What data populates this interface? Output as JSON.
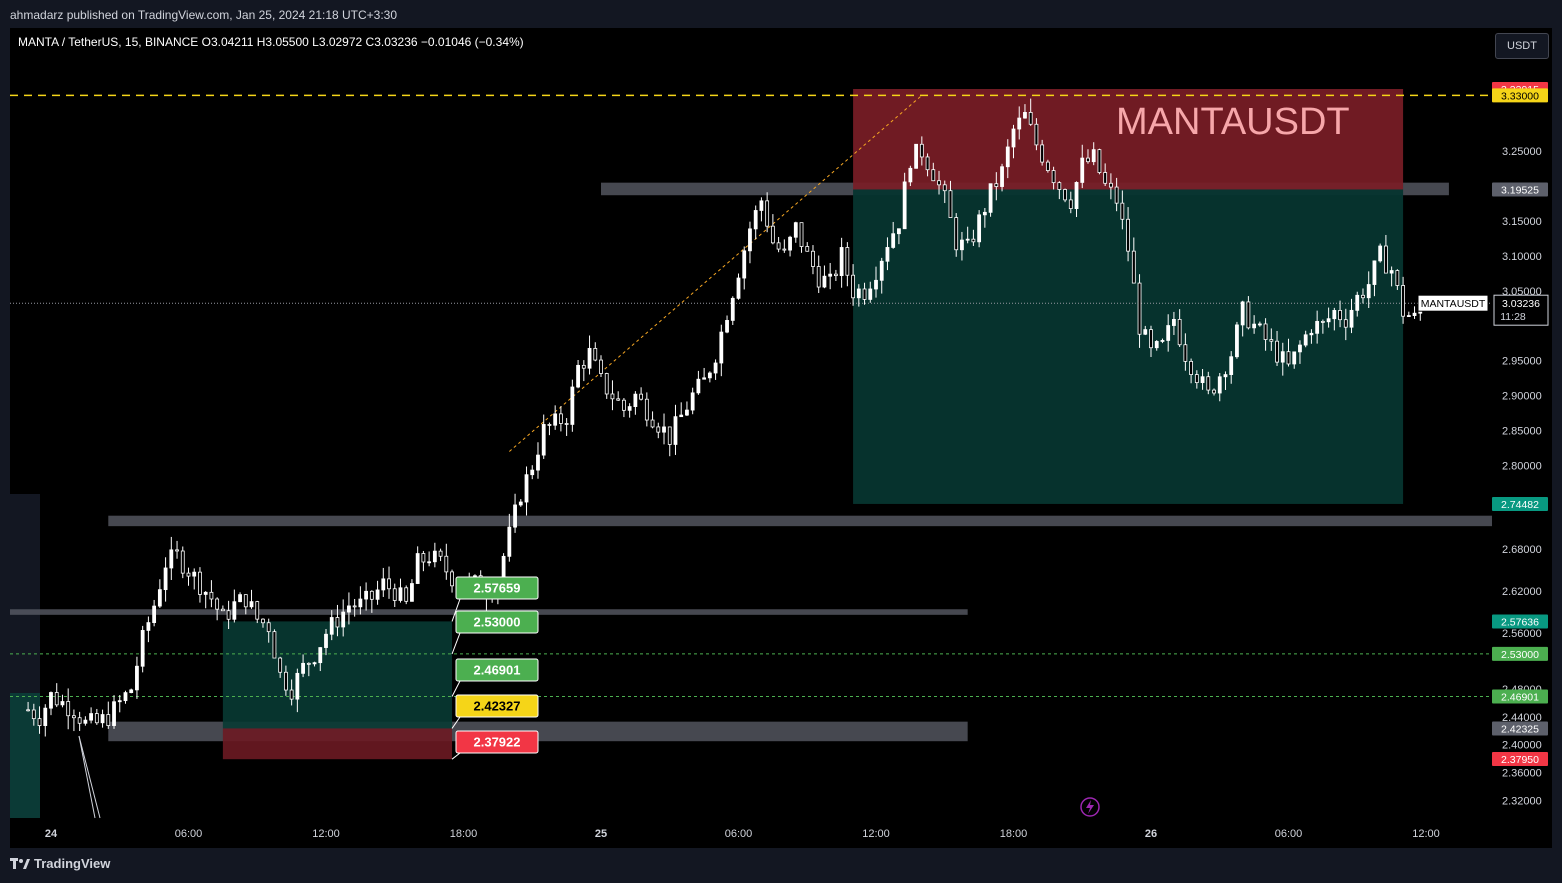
{
  "header": {
    "publisher": "ahmadarz published on TradingView.com, Jan 25, 2024 21:18 UTC+3:30",
    "symbol_info": "MANTA / TetherUS, 15, BINANCE  O3.04211  H3.05500  L3.02972  C3.03236  −0.01046 (−0.34%)",
    "currency_button": "USDT"
  },
  "footer": {
    "brand": "TradingView"
  },
  "chart_data": {
    "type": "candlestick",
    "symbol": "MANTA / TetherUS, 15, BINANCE",
    "watermark": "MANTAUSDT",
    "ohlc": {
      "open": 3.04211,
      "high": 3.055,
      "low": 3.02972,
      "close": 3.03236,
      "change": -0.01046,
      "change_pct": -0.34
    },
    "y_ticks": [
      3.25,
      3.15,
      3.1,
      3.05,
      2.95,
      2.9,
      2.85,
      2.8,
      2.68,
      2.62,
      2.56,
      2.48,
      2.44,
      2.4,
      2.36,
      2.32
    ],
    "ylim": [
      2.3,
      3.37
    ],
    "x_ticks": [
      {
        "label": "24",
        "hour": 0
      },
      {
        "label": "06:00",
        "hour": 6
      },
      {
        "label": "12:00",
        "hour": 12
      },
      {
        "label": "18:00",
        "hour": 18
      },
      {
        "label": "25",
        "hour": 24
      },
      {
        "label": "06:00",
        "hour": 30
      },
      {
        "label": "12:00",
        "hour": 36
      },
      {
        "label": "18:00",
        "hour": 42
      },
      {
        "label": "26",
        "hour": 48
      },
      {
        "label": "06:00",
        "hour": 54
      },
      {
        "label": "12:00",
        "hour": 60
      }
    ],
    "price_tags": [
      {
        "value": "3.33915",
        "price": 3.33915,
        "color": "#f23645",
        "text": "#ffffff"
      },
      {
        "value": "3.33000",
        "price": 3.33,
        "color": "#f5d518",
        "text": "#000000"
      },
      {
        "value": "3.19525",
        "price": 3.19525,
        "color": "#5d606b",
        "text": "#ffffff"
      },
      {
        "value": "2.74482",
        "price": 2.74482,
        "color": "#089981",
        "text": "#ffffff"
      },
      {
        "value": "2.57636",
        "price": 2.57636,
        "color": "#089981",
        "text": "#ffffff"
      },
      {
        "value": "2.53000",
        "price": 2.53,
        "color": "#4caf50",
        "text": "#ffffff"
      },
      {
        "value": "2.46901",
        "price": 2.46901,
        "color": "#4caf50",
        "text": "#ffffff"
      },
      {
        "value": "2.42325",
        "price": 2.42325,
        "color": "#5d606b",
        "text": "#ffffff"
      },
      {
        "value": "2.37950",
        "price": 2.3795,
        "color": "#f23645",
        "text": "#ffffff"
      }
    ],
    "current_price": {
      "symbol": "MANTAUSDT",
      "value": "3.03236",
      "countdown": "11:28",
      "price": 3.03236
    },
    "callouts": [
      {
        "value": "2.57659",
        "price": 2.57659,
        "color": "#4caf50",
        "text": "#ffffff"
      },
      {
        "value": "2.53000",
        "price": 2.53,
        "color": "#4caf50",
        "text": "#ffffff"
      },
      {
        "value": "2.46901",
        "price": 2.46901,
        "color": "#4caf50",
        "text": "#ffffff"
      },
      {
        "value": "2.42327",
        "price": 2.42327,
        "color": "#f5d518",
        "text": "#000000"
      },
      {
        "value": "2.37922",
        "price": 2.37922,
        "color": "#f23645",
        "text": "#ffffff"
      }
    ],
    "short_position": {
      "entry": 3.19525,
      "stop": 3.33915,
      "target": 2.74482,
      "start_hour": 35,
      "end_hour": 59
    },
    "long_position": {
      "entry": 2.42327,
      "stop": 2.37922,
      "target": 2.57659,
      "start_hour": 7.5,
      "end_hour": 17.5
    },
    "zones": [
      {
        "top": 3.205,
        "bottom": 3.187,
        "start_hour": 24,
        "end_hour": 61
      },
      {
        "top": 2.728,
        "bottom": 2.713,
        "start_hour": 2.5,
        "end_hour": 69
      },
      {
        "top": 2.433,
        "bottom": 2.405,
        "start_hour": 2.5,
        "end_hour": 40
      },
      {
        "top": 2.594,
        "bottom": 2.586,
        "start_hour": -3,
        "end_hour": 40
      }
    ],
    "levels": [
      {
        "price": 3.33,
        "color": "#f5d518",
        "style": "dashed"
      },
      {
        "price": 2.53,
        "color": "#4caf50",
        "style": "dotted"
      },
      {
        "price": 2.46901,
        "color": "#4caf50",
        "style": "dotted"
      }
    ],
    "candle_color": "#ffffff",
    "price_path": [
      [
        -1,
        2.45
      ],
      [
        -0.5,
        2.44
      ],
      [
        0,
        2.47
      ],
      [
        0.5,
        2.46
      ],
      [
        1,
        2.45
      ],
      [
        1.5,
        2.43
      ],
      [
        2,
        2.43
      ],
      [
        2.5,
        2.44
      ],
      [
        3,
        2.46
      ],
      [
        3.5,
        2.48
      ],
      [
        4,
        2.55
      ],
      [
        4.5,
        2.6
      ],
      [
        5,
        2.66
      ],
      [
        5.5,
        2.67
      ],
      [
        6,
        2.65
      ],
      [
        6.5,
        2.63
      ],
      [
        7,
        2.61
      ],
      [
        7.5,
        2.58
      ],
      [
        8,
        2.6
      ],
      [
        8.5,
        2.61
      ],
      [
        9,
        2.58
      ],
      [
        9.5,
        2.57
      ],
      [
        10,
        2.5
      ],
      [
        10.5,
        2.48
      ],
      [
        11,
        2.51
      ],
      [
        11.5,
        2.53
      ],
      [
        12,
        2.56
      ],
      [
        12.5,
        2.58
      ],
      [
        13,
        2.6
      ],
      [
        13.5,
        2.6
      ],
      [
        14,
        2.61
      ],
      [
        14.5,
        2.63
      ],
      [
        15,
        2.62
      ],
      [
        15.5,
        2.6
      ],
      [
        16,
        2.66
      ],
      [
        16.5,
        2.67
      ],
      [
        17,
        2.66
      ],
      [
        17.5,
        2.64
      ],
      [
        18,
        2.63
      ],
      [
        18.5,
        2.63
      ],
      [
        19,
        2.62
      ],
      [
        19.5,
        2.64
      ],
      [
        20,
        2.7
      ],
      [
        20.5,
        2.76
      ],
      [
        21,
        2.8
      ],
      [
        21.5,
        2.85
      ],
      [
        22,
        2.86
      ],
      [
        22.5,
        2.87
      ],
      [
        23,
        2.94
      ],
      [
        23.5,
        2.96
      ],
      [
        24,
        2.92
      ],
      [
        24.5,
        2.9
      ],
      [
        25,
        2.88
      ],
      [
        25.5,
        2.9
      ],
      [
        26,
        2.88
      ],
      [
        26.5,
        2.86
      ],
      [
        27,
        2.84
      ],
      [
        27.5,
        2.87
      ],
      [
        28,
        2.9
      ],
      [
        28.5,
        2.92
      ],
      [
        29,
        2.96
      ],
      [
        29.5,
        3.02
      ],
      [
        30,
        3.08
      ],
      [
        30.5,
        3.14
      ],
      [
        31,
        3.18
      ],
      [
        31.5,
        3.12
      ],
      [
        32,
        3.1
      ],
      [
        32.5,
        3.14
      ],
      [
        33,
        3.1
      ],
      [
        33.5,
        3.07
      ],
      [
        34,
        3.06
      ],
      [
        34.5,
        3.1
      ],
      [
        35,
        3.05
      ],
      [
        35.5,
        3.05
      ],
      [
        36,
        3.08
      ],
      [
        36.5,
        3.12
      ],
      [
        37,
        3.15
      ],
      [
        37.5,
        3.24
      ],
      [
        38,
        3.25
      ],
      [
        38.5,
        3.22
      ],
      [
        39,
        3.18
      ],
      [
        39.5,
        3.12
      ],
      [
        40,
        3.11
      ],
      [
        40.5,
        3.15
      ],
      [
        41,
        3.19
      ],
      [
        41.5,
        3.22
      ],
      [
        42,
        3.28
      ],
      [
        42.5,
        3.3
      ],
      [
        43,
        3.26
      ],
      [
        43.5,
        3.23
      ],
      [
        44,
        3.2
      ],
      [
        44.5,
        3.18
      ],
      [
        45,
        3.23
      ],
      [
        45.5,
        3.24
      ],
      [
        46,
        3.2
      ],
      [
        46.5,
        3.18
      ],
      [
        47,
        3.11
      ],
      [
        47.5,
        3.0
      ],
      [
        48,
        2.96
      ],
      [
        48.5,
        2.97
      ],
      [
        49,
        3.01
      ],
      [
        49.5,
        2.96
      ],
      [
        50,
        2.93
      ],
      [
        50.5,
        2.9
      ],
      [
        51,
        2.93
      ],
      [
        51.5,
        2.96
      ],
      [
        52,
        3.02
      ],
      [
        52.5,
        3.0
      ],
      [
        53,
        2.98
      ],
      [
        53.5,
        2.96
      ],
      [
        54,
        2.94
      ],
      [
        54.5,
        2.97
      ],
      [
        55,
        3.0
      ],
      [
        55.5,
        3.0
      ],
      [
        56,
        3.02
      ],
      [
        56.5,
        3.01
      ],
      [
        57,
        3.04
      ],
      [
        57.5,
        3.06
      ],
      [
        58,
        3.1
      ],
      [
        58.5,
        3.08
      ],
      [
        59,
        3.02
      ],
      [
        59.5,
        3.01
      ],
      [
        60,
        3.03
      ]
    ]
  }
}
